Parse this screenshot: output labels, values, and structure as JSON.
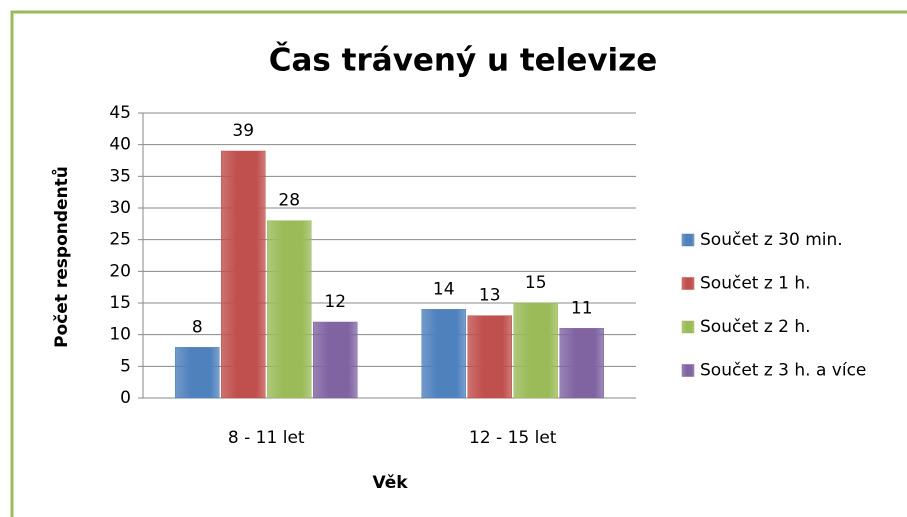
{
  "chart_data": {
    "type": "bar",
    "title": "Čas trávený u televize",
    "x_label": "Věk",
    "y_label": "Počet respondentů",
    "categories": [
      "8 - 11 let",
      "12 - 15 let"
    ],
    "series": [
      {
        "name": "Součet z 30 min.",
        "color": "#4f81bd",
        "values": [
          8,
          14
        ]
      },
      {
        "name": "Součet z 1 h.",
        "color": "#c0504d",
        "values": [
          39,
          13
        ]
      },
      {
        "name": "Součet z 2 h.",
        "color": "#9bbb59",
        "values": [
          28,
          15
        ]
      },
      {
        "name": "Součet z 3 h. a více",
        "color": "#8064a2",
        "values": [
          12,
          11
        ]
      }
    ],
    "ylim": [
      0,
      45
    ],
    "yticks": [
      0,
      5,
      10,
      15,
      20,
      25,
      30,
      35,
      40,
      45
    ],
    "grid": true,
    "legend": "right"
  }
}
